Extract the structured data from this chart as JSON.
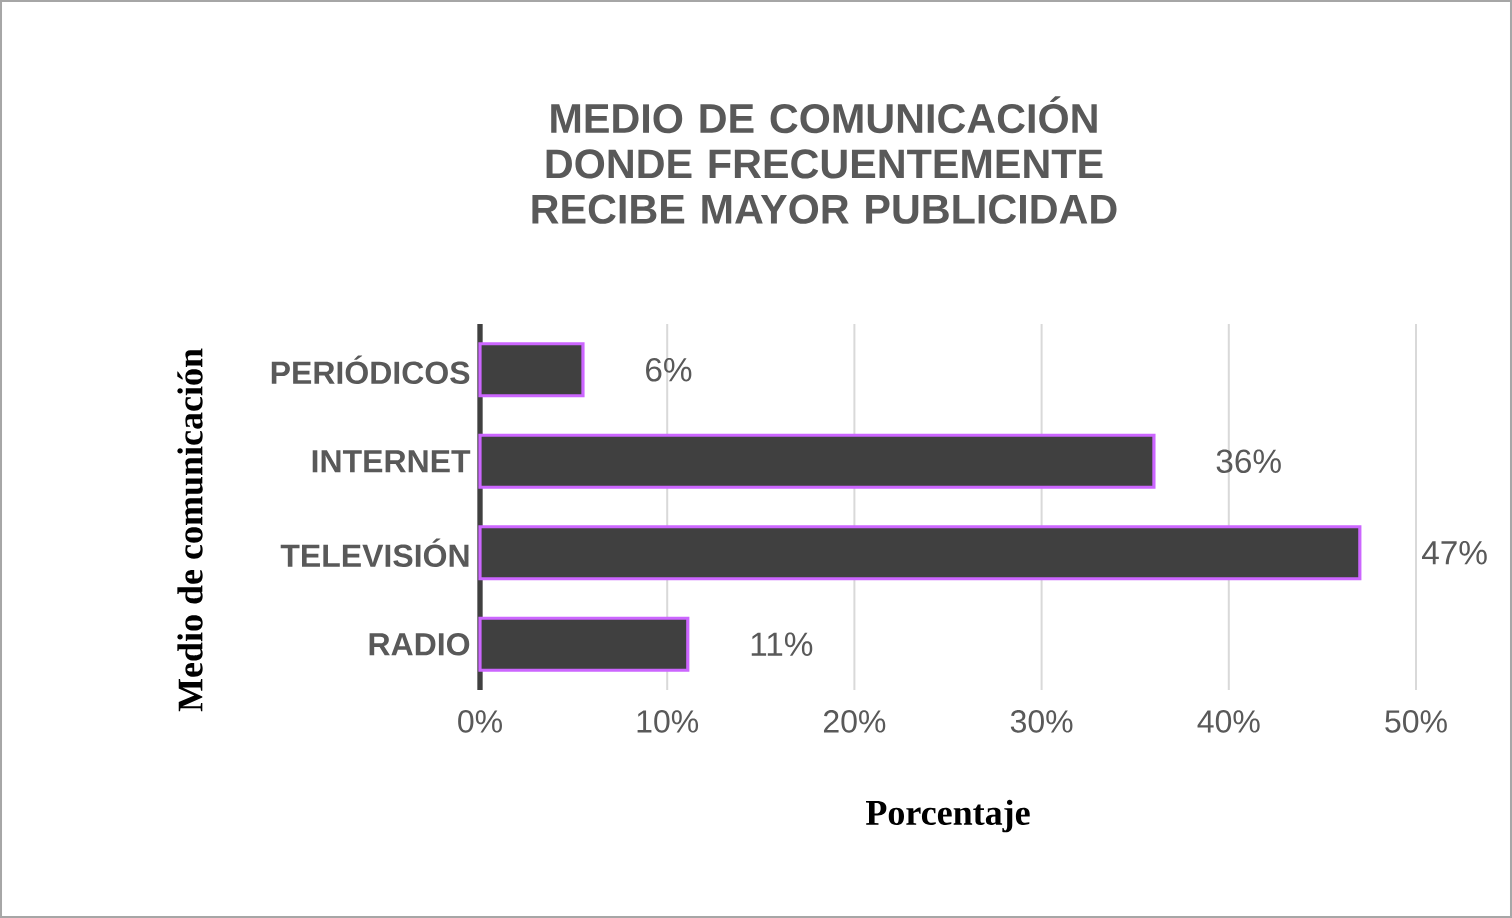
{
  "chart_data": {
    "type": "bar",
    "orientation": "horizontal",
    "title": "MEDIO DE COMUNICACIÓN DONDE FRECUENTEMENTE RECIBE MAYOR PUBLICIDAD",
    "xlabel": "Porcentaje",
    "ylabel": "Medio de comunicación",
    "categories": [
      "PERIÓDICOS",
      "INTERNET",
      "TELEVISIÓN",
      "RADIO"
    ],
    "values": [
      5.5,
      36,
      47,
      11.1
    ],
    "value_labels": [
      "6%",
      "36%",
      "47%",
      "11%"
    ],
    "color": "#404040",
    "xlim": [
      0,
      50
    ],
    "xticks": [
      {
        "value": 0,
        "label": "0%"
      },
      {
        "value": 10,
        "label": "10%"
      },
      {
        "value": 20,
        "label": "20%"
      },
      {
        "value": 30,
        "label": "30%"
      },
      {
        "value": 40,
        "label": "40%"
      },
      {
        "value": 50,
        "label": "50%"
      }
    ],
    "grid": "x"
  }
}
